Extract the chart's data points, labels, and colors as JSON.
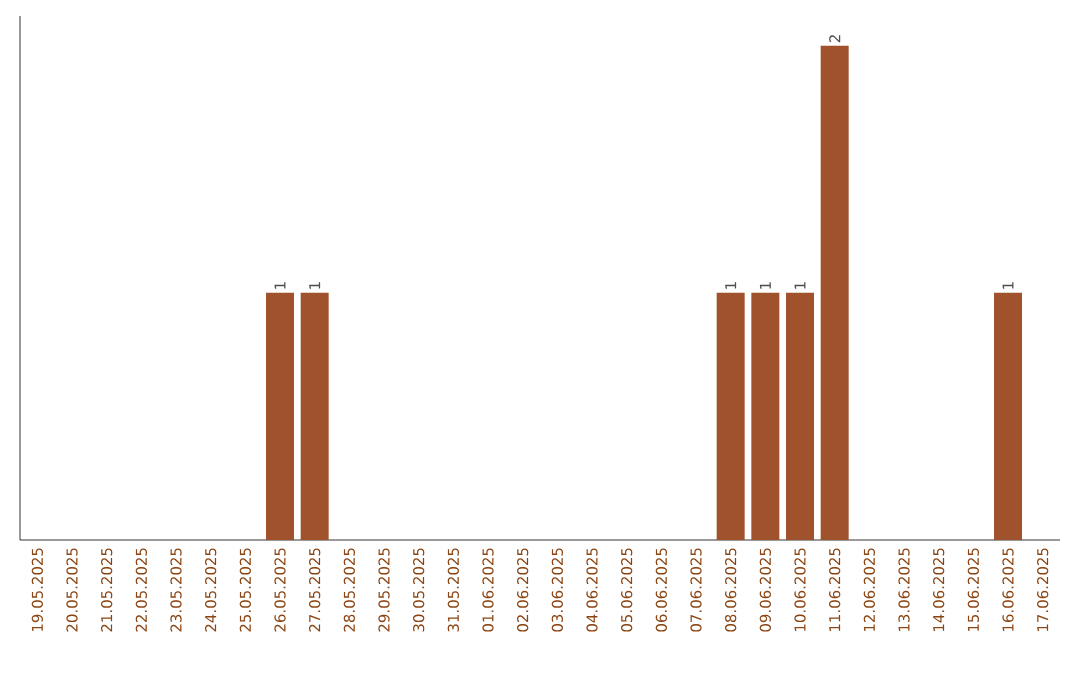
{
  "chart_data": {
    "type": "bar",
    "color": "#a0522d",
    "categories": [
      "19.05.2025",
      "20.05.2025",
      "21.05.2025",
      "22.05.2025",
      "23.05.2025",
      "24.05.2025",
      "25.05.2025",
      "26.05.2025",
      "27.05.2025",
      "28.05.2025",
      "29.05.2025",
      "30.05.2025",
      "31.05.2025",
      "01.06.2025",
      "02.06.2025",
      "03.06.2025",
      "04.06.2025",
      "05.06.2025",
      "06.06.2025",
      "07.06.2025",
      "08.06.2025",
      "09.06.2025",
      "10.06.2025",
      "11.06.2025",
      "12.06.2025",
      "13.06.2025",
      "14.06.2025",
      "15.06.2025",
      "16.06.2025",
      "17.06.2025"
    ],
    "values": [
      0,
      0,
      0,
      0,
      0,
      0,
      0,
      1,
      1,
      0,
      0,
      0,
      0,
      0,
      0,
      0,
      0,
      0,
      0,
      0,
      1,
      1,
      1,
      2,
      0,
      0,
      0,
      0,
      1,
      0
    ],
    "value_labels": [
      null,
      null,
      null,
      null,
      null,
      null,
      null,
      "1",
      "1",
      null,
      null,
      null,
      null,
      null,
      null,
      null,
      null,
      null,
      null,
      null,
      "1",
      "1",
      "1",
      "2",
      null,
      null,
      null,
      null,
      "1",
      null
    ],
    "tick_labels": "x"
  }
}
